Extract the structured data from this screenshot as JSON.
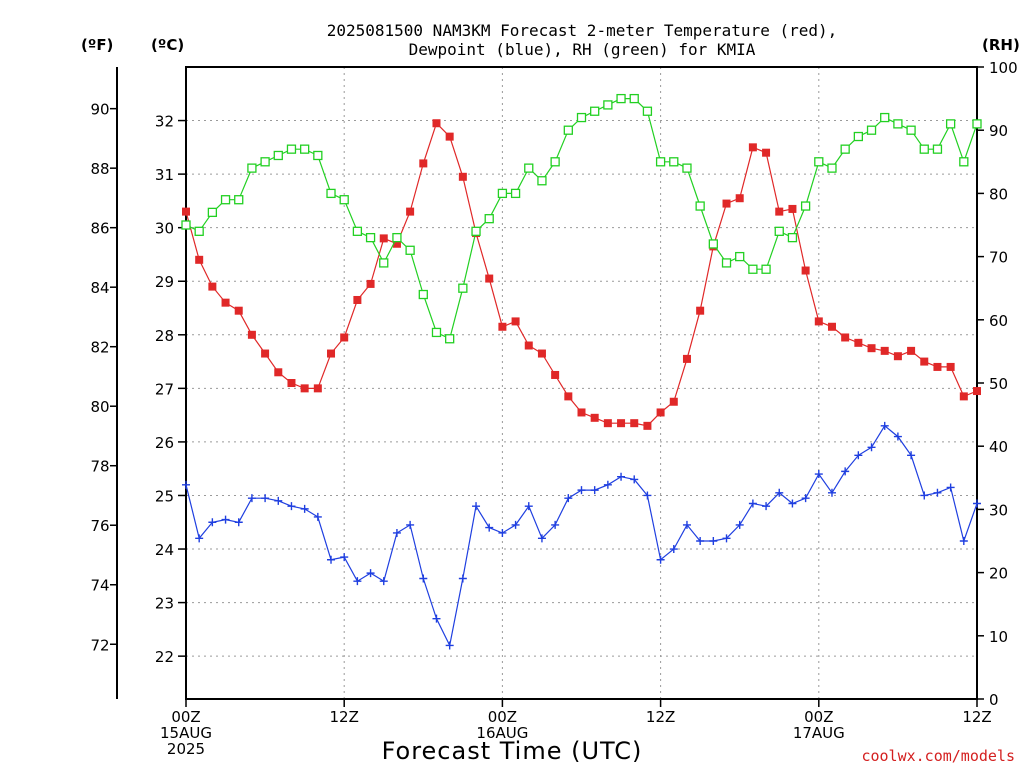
{
  "title": [
    "2025081500 NAM3KM Forecast 2-meter Temperature (red),",
    "Dewpoint (blue), RH (green) for KMIA"
  ],
  "units": {
    "f": "(ºF)",
    "c": "(ºC)",
    "rh": "(RH)"
  },
  "xlabel": "Forecast Time (UTC)",
  "credit": "coolwx.com/models",
  "chart_data": {
    "type": "line",
    "x_hours": [
      0,
      1,
      2,
      3,
      4,
      5,
      6,
      7,
      8,
      9,
      10,
      11,
      12,
      13,
      14,
      15,
      16,
      17,
      18,
      19,
      20,
      21,
      22,
      23,
      24,
      25,
      26,
      27,
      28,
      29,
      30,
      31,
      32,
      33,
      34,
      35,
      36,
      37,
      38,
      39,
      40,
      41,
      42,
      43,
      44,
      45,
      46,
      47,
      48,
      49,
      50,
      51,
      52,
      53,
      54,
      55,
      56,
      57,
      58,
      59,
      60
    ],
    "x_ticks": [
      {
        "hour": 0,
        "lines": [
          "00Z",
          "15AUG",
          "2025"
        ]
      },
      {
        "hour": 12,
        "lines": [
          "12Z"
        ]
      },
      {
        "hour": 24,
        "lines": [
          "00Z",
          "16AUG"
        ]
      },
      {
        "hour": 36,
        "lines": [
          "12Z"
        ]
      },
      {
        "hour": 48,
        "lines": [
          "00Z",
          "17AUG"
        ]
      },
      {
        "hour": 60,
        "lines": [
          "12Z"
        ]
      }
    ],
    "xlim": [
      0,
      60
    ],
    "ylim_c": [
      21.2,
      33.0
    ],
    "yticks_c": [
      "22",
      "23",
      "24",
      "25",
      "26",
      "27",
      "28",
      "29",
      "30",
      "31",
      "32"
    ],
    "yticks_f": [
      "72",
      "74",
      "76",
      "78",
      "80",
      "82",
      "84",
      "86",
      "88",
      "90"
    ],
    "yticks_rh": [
      "0",
      "10",
      "20",
      "30",
      "40",
      "50",
      "60",
      "70",
      "80",
      "90",
      "100"
    ],
    "ylim_rh": [
      0,
      100
    ],
    "grid": true,
    "series": [
      {
        "color": "#e02828",
        "marker": "filled-square",
        "axis": "c",
        "values": [
          30.3,
          29.4,
          28.9,
          28.6,
          28.45,
          28.0,
          27.65,
          27.3,
          27.1,
          27.0,
          27.0,
          27.65,
          27.95,
          28.65,
          28.95,
          29.8,
          29.7,
          30.3,
          31.2,
          31.95,
          31.7,
          30.95,
          29.9,
          29.05,
          28.15,
          28.25,
          27.8,
          27.65,
          27.25,
          26.85,
          26.55,
          26.45,
          26.35,
          26.35,
          26.35,
          26.3,
          26.55,
          26.75,
          27.55,
          28.45,
          29.65,
          30.45,
          30.55,
          31.5,
          31.4,
          30.3,
          30.35,
          29.2,
          28.25,
          28.15,
          27.95,
          27.85,
          27.75,
          27.7,
          27.6,
          27.7,
          27.5,
          27.4,
          27.4,
          26.85,
          26.95
        ]
      },
      {
        "color": "#1f3fe0",
        "marker": "plus",
        "axis": "c",
        "values": [
          25.2,
          24.2,
          24.5,
          24.55,
          24.5,
          24.95,
          24.95,
          24.9,
          24.8,
          24.75,
          24.6,
          23.8,
          23.85,
          23.4,
          23.55,
          23.4,
          24.3,
          24.45,
          23.45,
          22.7,
          22.2,
          23.45,
          24.8,
          24.4,
          24.3,
          24.45,
          24.8,
          24.2,
          24.45,
          24.95,
          25.1,
          25.1,
          25.2,
          25.35,
          25.3,
          25.0,
          23.8,
          24.0,
          24.45,
          24.15,
          24.15,
          24.2,
          24.45,
          24.85,
          24.8,
          25.05,
          24.85,
          24.95,
          25.4,
          25.05,
          25.45,
          25.75,
          25.9,
          26.3,
          26.1,
          25.75,
          25.0,
          25.05,
          25.15,
          24.15,
          24.85
        ]
      },
      {
        "color": "#22d022",
        "marker": "open-square",
        "axis": "rh",
        "values": [
          75,
          74,
          77,
          79,
          79,
          84,
          85,
          86,
          87,
          87,
          86,
          80,
          79,
          74,
          73,
          69,
          73,
          71,
          64,
          58,
          57,
          65,
          74,
          76,
          80,
          80,
          84,
          82,
          85,
          90,
          92,
          93,
          94,
          95,
          95,
          93,
          85,
          85,
          84,
          78,
          72,
          69,
          70,
          68,
          68,
          74,
          73,
          78,
          85,
          84,
          87,
          89,
          90,
          92,
          91,
          90,
          87,
          87,
          91,
          85,
          91
        ]
      }
    ]
  }
}
